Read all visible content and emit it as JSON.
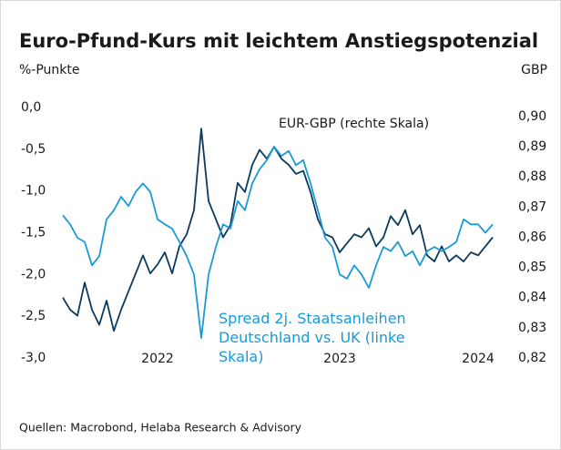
{
  "chart_data": {
    "type": "line",
    "title": "Euro-Pfund-Kurs mit leichtem Anstiegspotenzial",
    "ylabel": "%-Punkte",
    "y2label": "GBP",
    "source": "Quellen: Macrobond, Helaba Research & Advisory",
    "categories": [
      null,
      null,
      null,
      null,
      null,
      null,
      null,
      null,
      null,
      null,
      null,
      null,
      null,
      "2022",
      null,
      null,
      null,
      null,
      null,
      null,
      null,
      null,
      null,
      null,
      null,
      null,
      null,
      null,
      null,
      null,
      null,
      null,
      null,
      null,
      null,
      null,
      null,
      null,
      "2023",
      null,
      null,
      null,
      null,
      null,
      null,
      null,
      null,
      null,
      null,
      null,
      null,
      null,
      null,
      null,
      null,
      null,
      null,
      "2024",
      null,
      null
    ],
    "ylim": [
      -3,
      0
    ],
    "yticks": [
      {
        "value": 0,
        "label": "0,0"
      },
      {
        "value": -0.5,
        "label": "-0,5"
      },
      {
        "value": -1,
        "label": "-1,0"
      },
      {
        "value": -1.5,
        "label": "-1,5"
      },
      {
        "value": -2,
        "label": "-2,0"
      },
      {
        "value": -2.5,
        "label": "-2,5"
      },
      {
        "value": -3,
        "label": "-3,0"
      }
    ],
    "y2lim": [
      0.82,
      0.903
    ],
    "y2ticks": [
      {
        "value": 0.9,
        "label": "0,90"
      },
      {
        "value": 0.89,
        "label": "0,89"
      },
      {
        "value": 0.88,
        "label": "0,88"
      },
      {
        "value": 0.87,
        "label": "0,87"
      },
      {
        "value": 0.86,
        "label": "0,86"
      },
      {
        "value": 0.85,
        "label": "0,85"
      },
      {
        "value": 0.84,
        "label": "0,84"
      },
      {
        "value": 0.83,
        "label": "0,83"
      },
      {
        "value": 0.82,
        "label": "0,82"
      }
    ],
    "series": [
      {
        "name": "EUR-GBP (rechte Skala)",
        "color": "#0b3a5e",
        "axis": "y2",
        "values": [
          0.84,
          0.836,
          0.834,
          0.845,
          0.836,
          0.831,
          0.839,
          0.829,
          0.836,
          0.842,
          0.848,
          0.854,
          0.848,
          0.851,
          0.855,
          0.848,
          0.857,
          0.861,
          0.869,
          0.896,
          0.872,
          0.866,
          0.86,
          0.864,
          0.878,
          0.875,
          0.884,
          0.889,
          0.886,
          0.89,
          0.886,
          0.884,
          0.881,
          0.882,
          0.875,
          0.866,
          0.861,
          0.86,
          0.855,
          0.858,
          0.861,
          0.86,
          0.863,
          0.857,
          0.86,
          0.867,
          0.864,
          0.869,
          0.861,
          0.864,
          0.854,
          0.852,
          0.857,
          0.852,
          0.854,
          0.852,
          0.855,
          0.854,
          0.857,
          0.86
        ]
      },
      {
        "name": "Spread 2j. Staatsanleihen Deutschland vs. UK (linke Skala)",
        "color": "#1a9ad6",
        "axis": "y",
        "values": [
          -1.29,
          -1.4,
          -1.56,
          -1.61,
          -1.89,
          -1.78,
          -1.34,
          -1.23,
          -1.07,
          -1.18,
          -1.01,
          -0.91,
          -1.01,
          -1.34,
          -1.4,
          -1.45,
          -1.61,
          -1.78,
          -2.0,
          -2.76,
          -2.0,
          -1.67,
          -1.4,
          -1.45,
          -1.12,
          -1.23,
          -0.91,
          -0.74,
          -0.63,
          -0.47,
          -0.58,
          -0.52,
          -0.69,
          -0.63,
          -0.91,
          -1.23,
          -1.56,
          -1.67,
          -2.0,
          -2.05,
          -1.89,
          -2.0,
          -2.16,
          -1.89,
          -1.67,
          -1.72,
          -1.61,
          -1.78,
          -1.72,
          -1.89,
          -1.72,
          -1.67,
          -1.72,
          -1.67,
          -1.61,
          -1.34,
          -1.4,
          -1.4,
          -1.5,
          -1.4
        ]
      }
    ]
  }
}
